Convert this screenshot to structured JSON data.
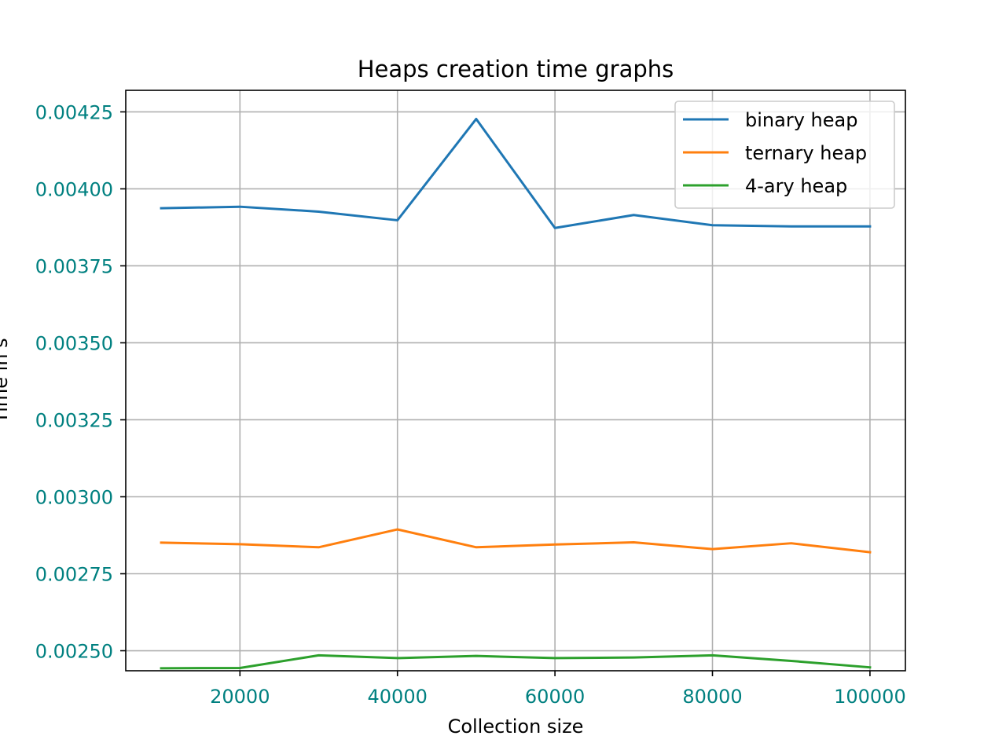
{
  "chart_data": {
    "type": "line",
    "title": "Heaps creation time graphs",
    "xlabel": "Collection size",
    "ylabel": "Time in s",
    "x": [
      10000,
      20000,
      30000,
      40000,
      50000,
      60000,
      70000,
      80000,
      90000,
      100000
    ],
    "xticks": [
      "20000",
      "40000",
      "60000",
      "80000",
      "100000"
    ],
    "yticks": [
      "0.00250",
      "0.00275",
      "0.00300",
      "0.00325",
      "0.00350",
      "0.00375",
      "0.00400",
      "0.00425"
    ],
    "xlim": [
      5500,
      104500
    ],
    "ylim": [
      0.002435,
      0.00432
    ],
    "grid": true,
    "legend_position": "top-right",
    "tick_label_color": "#008080",
    "series": [
      {
        "name": "binary heap",
        "color": "#1f77b4",
        "values": [
          0.003937,
          0.003942,
          0.003926,
          0.003898,
          0.004227,
          0.003873,
          0.003915,
          0.003882,
          0.003878,
          0.003878
        ]
      },
      {
        "name": "ternary heap",
        "color": "#ff7f0e",
        "values": [
          0.002851,
          0.002846,
          0.002836,
          0.002894,
          0.002836,
          0.002845,
          0.002852,
          0.00283,
          0.002849,
          0.00282
        ]
      },
      {
        "name": "4-ary heap",
        "color": "#2ca02c",
        "values": [
          0.002443,
          0.002444,
          0.002485,
          0.002476,
          0.002483,
          0.002476,
          0.002478,
          0.002485,
          0.002467,
          0.002446
        ]
      }
    ]
  }
}
